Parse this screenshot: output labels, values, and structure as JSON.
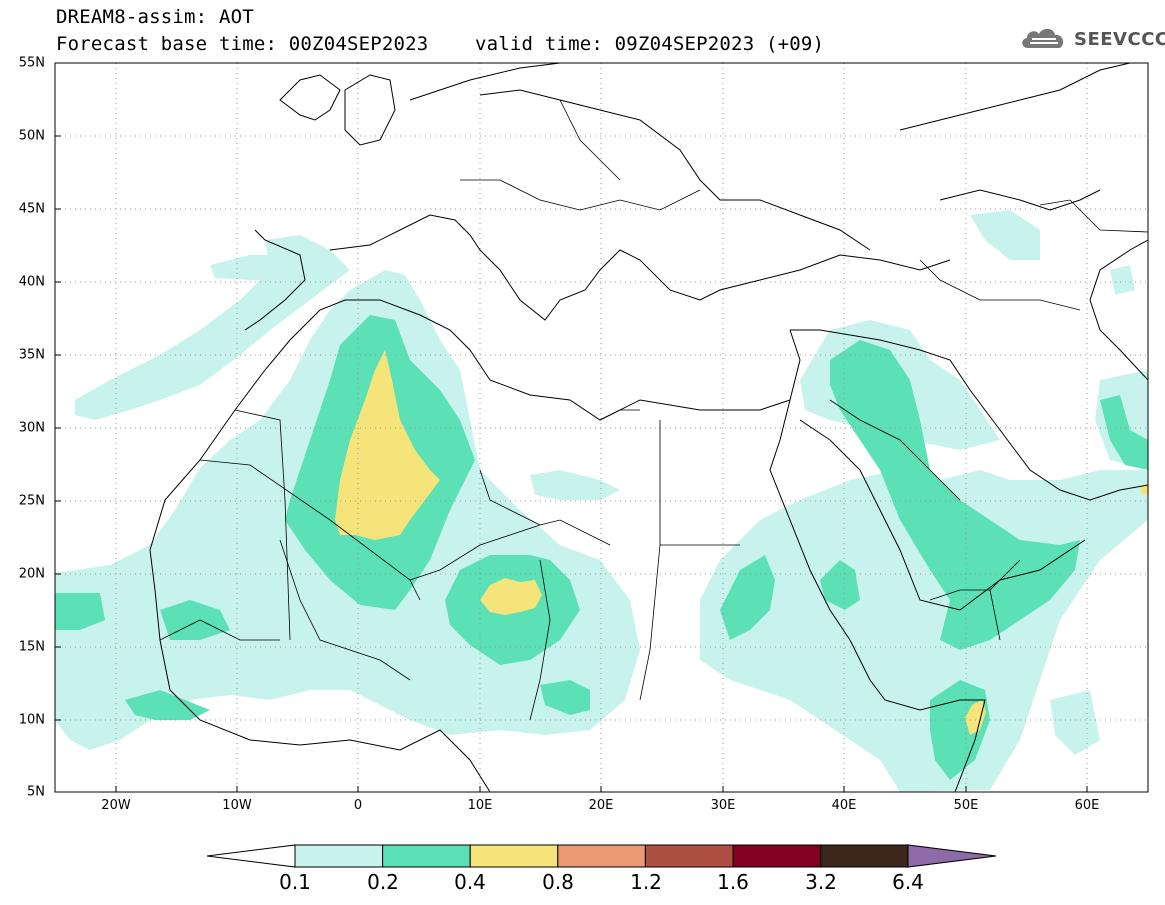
{
  "title": {
    "line1": "DREAM8-assim: AOT",
    "line2": "Forecast base time: 00Z04SEP2023    valid time: 09Z04SEP2023 (+09)"
  },
  "logo": {
    "text": "SEEVCCC",
    "icon": "cloud-icon"
  },
  "map": {
    "lon_range": [
      -25,
      65
    ],
    "lat_range": [
      5,
      55
    ],
    "lat_labels": [
      "55N",
      "50N",
      "45N",
      "40N",
      "35N",
      "30N",
      "25N",
      "20N",
      "15N",
      "10N",
      "5N"
    ],
    "lon_labels": [
      "20W",
      "10W",
      "0",
      "10E",
      "20E",
      "30E",
      "40E",
      "50E",
      "60E"
    ],
    "grid": true
  },
  "colorbar": {
    "levels": [
      "0.1",
      "0.2",
      "0.4",
      "0.8",
      "1.2",
      "1.6",
      "3.2",
      "6.4"
    ],
    "colors": [
      "#c8f3ed",
      "#5ce0b6",
      "#f5e47a",
      "#ea9a72",
      "#ae4f43",
      "#820020",
      "#3b2619",
      "#8e6aa8"
    ]
  }
}
